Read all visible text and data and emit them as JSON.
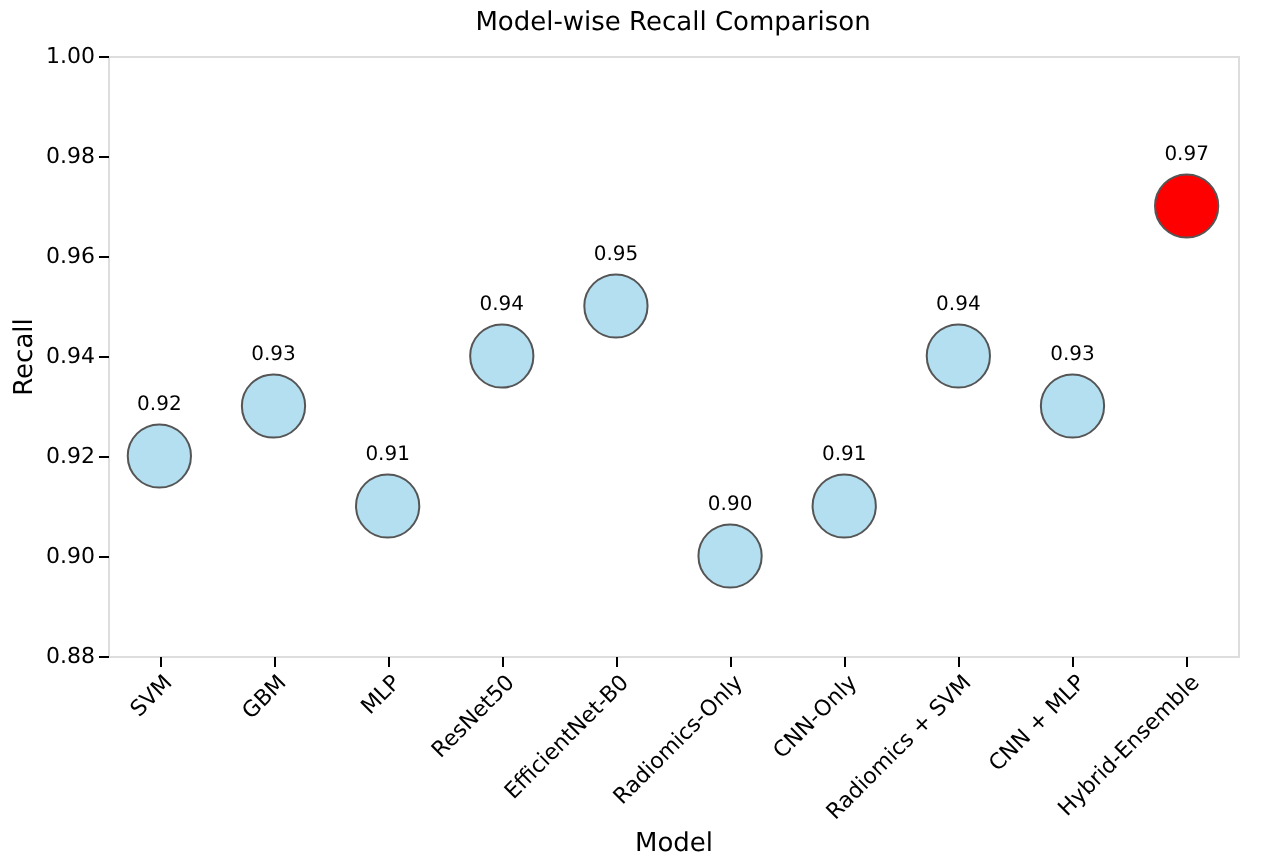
{
  "chart_data": {
    "type": "scatter",
    "title": "Model-wise Recall Comparison",
    "xlabel": "Model",
    "ylabel": "Recall",
    "categories": [
      "SVM",
      "GBM",
      "MLP",
      "ResNet50",
      "EfficientNet-B0",
      "Radiomics-Only",
      "CNN-Only",
      "Radiomics + SVM",
      "CNN + MLP",
      "Hybrid-Ensemble"
    ],
    "values": [
      0.92,
      0.93,
      0.91,
      0.94,
      0.95,
      0.9,
      0.91,
      0.94,
      0.93,
      0.97
    ],
    "value_labels": [
      "0.92",
      "0.93",
      "0.91",
      "0.94",
      "0.95",
      "0.90",
      "0.91",
      "0.94",
      "0.93",
      "0.97"
    ],
    "colors": [
      "#b3dff0",
      "#b3dff0",
      "#b3dff0",
      "#b3dff0",
      "#b3dff0",
      "#b3dff0",
      "#b3dff0",
      "#b3dff0",
      "#b3dff0",
      "#ff0000"
    ],
    "ylim": [
      0.88,
      1.0
    ],
    "yticks": [
      0.88,
      {
        "value": 0.9,
        "label": "0.90"
      },
      0.92,
      0.94,
      0.96,
      0.98,
      {
        "value": 1.0,
        "label": "1.00"
      }
    ],
    "marker": "circle",
    "grid": false
  }
}
